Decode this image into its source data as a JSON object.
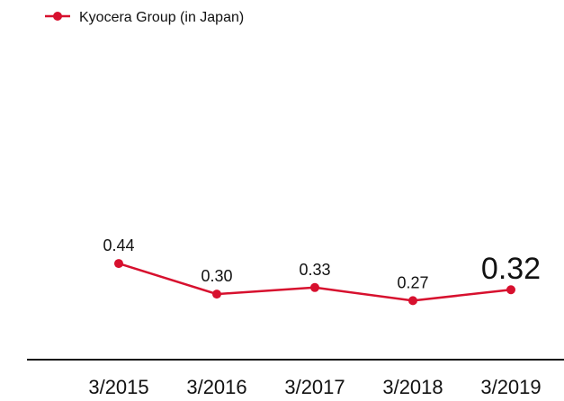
{
  "chart_data": {
    "type": "line",
    "categories": [
      "3/2015",
      "3/2016",
      "3/2017",
      "3/2018",
      "3/2019"
    ],
    "series": [
      {
        "name": "Kyocera Group (in Japan)",
        "color": "#d7102e",
        "values": [
          0.44,
          0.3,
          0.33,
          0.27,
          0.32
        ],
        "value_labels": [
          "0.44",
          "0.30",
          "0.33",
          "0.27",
          "0.32"
        ]
      }
    ]
  }
}
